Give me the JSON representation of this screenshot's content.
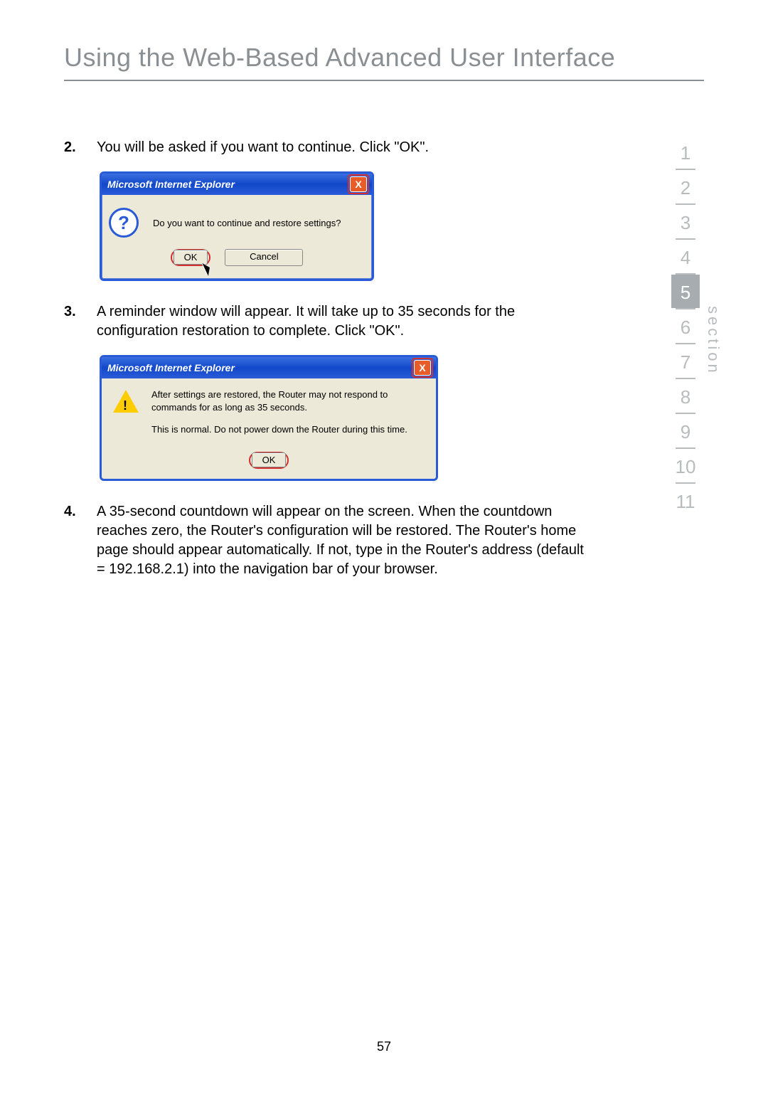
{
  "title": "Using the Web-Based Advanced User Interface",
  "steps": {
    "s2": {
      "num": "2.",
      "text": "You will be asked if you want to continue. Click \"OK\"."
    },
    "s3": {
      "num": "3.",
      "text": "A reminder window will appear. It will take up to 35 seconds for the configuration restoration to complete. Click \"OK\"."
    },
    "s4": {
      "num": "4.",
      "text": "A 35-second countdown will appear on the screen. When the countdown reaches zero, the Router's configuration will be restored. The Router's home page should appear automatically. If not, type in the Router's address (default = 192.168.2.1) into the navigation bar of your browser."
    }
  },
  "dialog1": {
    "title": "Microsoft Internet Explorer",
    "close_glyph": "X",
    "message": "Do you want to continue and restore settings?",
    "ok": "OK",
    "cancel": "Cancel",
    "question_glyph": "?"
  },
  "dialog2": {
    "title": "Microsoft Internet Explorer",
    "close_glyph": "X",
    "line1": "After settings are restored, the Router may not respond to commands for as long as 35 seconds.",
    "line2": "This is normal. Do not power down the Router during this time.",
    "ok": "OK"
  },
  "nav": {
    "label": "section",
    "items": [
      "1",
      "2",
      "3",
      "4",
      "5",
      "6",
      "7",
      "8",
      "9",
      "10",
      "11"
    ],
    "active_index": 4
  },
  "page_number": "57",
  "colors": {
    "title_gray": "#8a8f93",
    "nav_gray": "#b8bcbf",
    "nav_active_bg": "#a6acb0",
    "dialog_blue": "#2a5bd7",
    "dialog_body": "#ece9d8",
    "highlight_red": "#d32f2f",
    "close_orange": "#e85c2a",
    "warn_yellow": "#ffcc00"
  }
}
